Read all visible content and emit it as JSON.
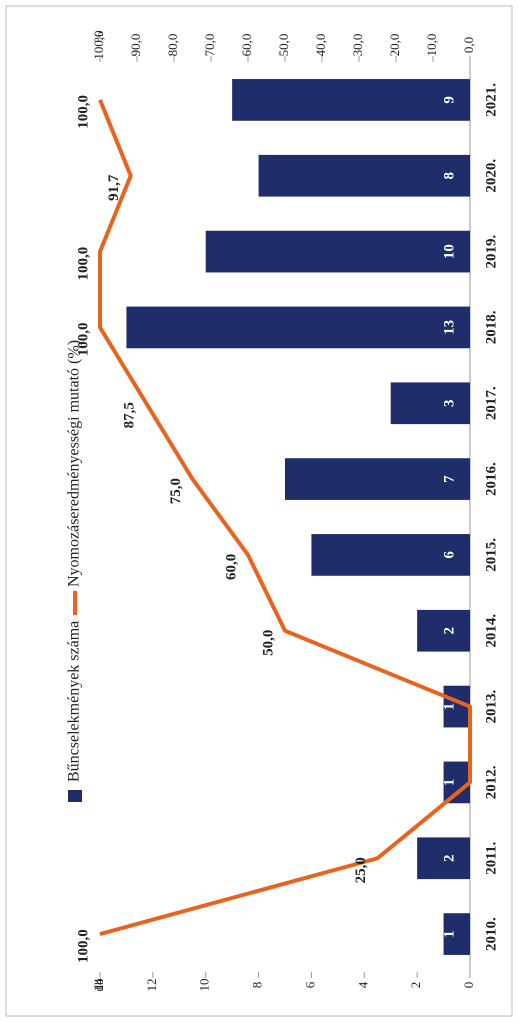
{
  "chart_data": {
    "type": "bar-line",
    "y_label": "db",
    "y2_label": "%",
    "categories": [
      "2010.",
      "2011.",
      "2012.",
      "2013.",
      "2014.",
      "2015.",
      "2016.",
      "2017.",
      "2018.",
      "2019.",
      "2020.",
      "2021."
    ],
    "series": [
      {
        "name": "Bűncselekmények száma",
        "color": "#1f2d6b",
        "type": "bar",
        "values": [
          1,
          2,
          1,
          1,
          2,
          6,
          7,
          3,
          13,
          10,
          8,
          9
        ]
      },
      {
        "name": "Nyomozáseredményességi mutató (%)",
        "color": "#e8641e",
        "type": "line",
        "axis": "y2",
        "values": [
          100,
          25,
          0,
          0,
          50,
          60,
          75,
          87.5,
          100,
          100,
          91.7,
          100
        ],
        "value_labels": [
          "100,0",
          "25,0",
          null,
          null,
          "50,0",
          "60,0",
          "75,0",
          "87,5",
          "100,0",
          "100,0",
          "91,7",
          "100,0"
        ]
      }
    ],
    "ylim": [
      0,
      14
    ],
    "yticks": [
      0,
      2,
      4,
      6,
      8,
      10,
      12,
      14
    ],
    "y2lim": [
      0,
      100
    ],
    "y2ticks": [
      {
        "value": 0,
        "label": "0,0"
      },
      {
        "value": 10,
        "label": "10,0"
      },
      {
        "value": 20,
        "label": "20,0"
      },
      {
        "value": 30,
        "label": "30,0"
      },
      {
        "value": 40,
        "label": "40,0"
      },
      {
        "value": 50,
        "label": "50,0"
      },
      {
        "value": 60,
        "label": "60,0"
      },
      {
        "value": 70,
        "label": "70,0"
      },
      {
        "value": 80,
        "label": "80,0"
      },
      {
        "value": 90,
        "label": "90,0"
      },
      {
        "value": 100,
        "label": "100,0"
      }
    ],
    "legend": "top"
  }
}
